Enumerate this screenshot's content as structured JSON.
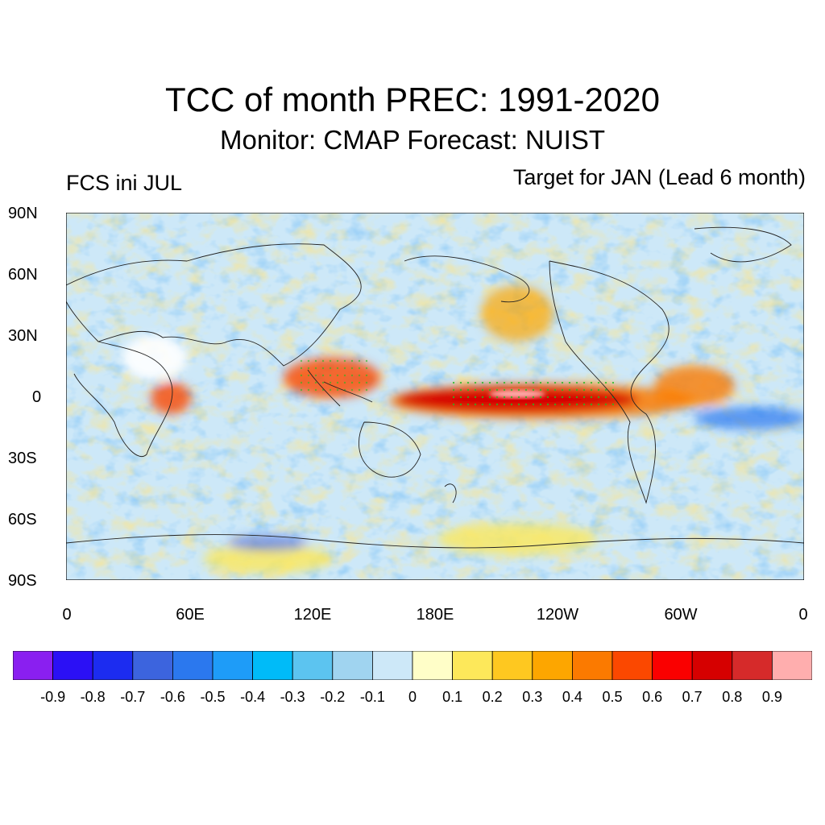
{
  "title": "TCC of month PREC: 1991-2020",
  "subtitle": "Monitor: CMAP   Forecast: NUIST",
  "left_label": "FCS ini JUL",
  "right_label": "Target for JAN (Lead 6 month)",
  "lat_ticks": [
    "90N",
    "60N",
    "30N",
    "0",
    "30S",
    "60S",
    "90S"
  ],
  "lon_ticks": [
    "0",
    "60E",
    "120E",
    "180E",
    "120W",
    "60W",
    "0"
  ],
  "colorbar": {
    "labels": [
      "-0.9",
      "-0.8",
      "-0.7",
      "-0.6",
      "-0.5",
      "-0.4",
      "-0.3",
      "-0.2",
      "-0.1",
      "0",
      "0.1",
      "0.2",
      "0.3",
      "0.4",
      "0.5",
      "0.6",
      "0.7",
      "0.8",
      "0.9"
    ],
    "colors": [
      "#8a1ff0",
      "#2b10f5",
      "#1c2cf0",
      "#3c64de",
      "#2b78ee",
      "#1e9cf8",
      "#00bbf8",
      "#5cc4f0",
      "#a0d4f0",
      "#cde8f8",
      "#fffec8",
      "#fde85a",
      "#fec820",
      "#fda600",
      "#fb7a00",
      "#fb4800",
      "#fa0000",
      "#d60000",
      "#d62a2a",
      "#ffaeae"
    ]
  }
}
